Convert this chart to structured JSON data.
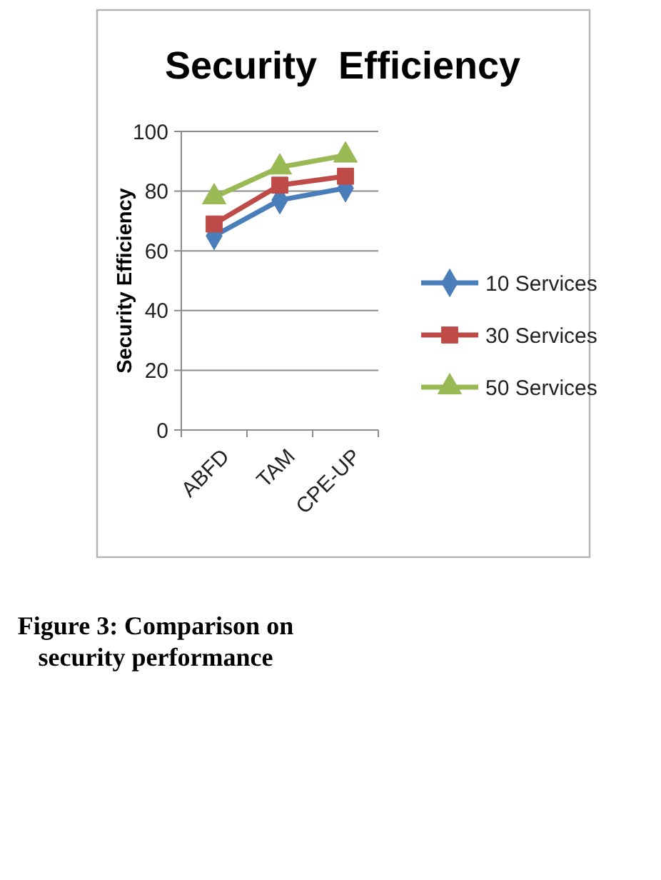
{
  "chart_data": {
    "type": "line",
    "title": "Security  Efficiency",
    "ylabel": "Security Efficiency",
    "categories": [
      "ABFD",
      "TAM",
      "CPE-UP"
    ],
    "series": [
      {
        "name": "10 Services",
        "color": "#4a7ebb",
        "marker": "diamond",
        "values": [
          65,
          77,
          81
        ]
      },
      {
        "name": "30 Services",
        "color": "#be4b48",
        "marker": "square",
        "values": [
          69,
          82,
          85
        ]
      },
      {
        "name": "50 Services",
        "color": "#98b954",
        "marker": "triangle",
        "values": [
          78,
          88,
          92
        ]
      }
    ],
    "ylim": [
      0,
      100
    ],
    "yticks": [
      0,
      20,
      40,
      60,
      80,
      100
    ],
    "grid": "y",
    "legend": "right",
    "line_style": "solid",
    "annotations": [
      "Figure 3: Comparison on security performance"
    ]
  }
}
